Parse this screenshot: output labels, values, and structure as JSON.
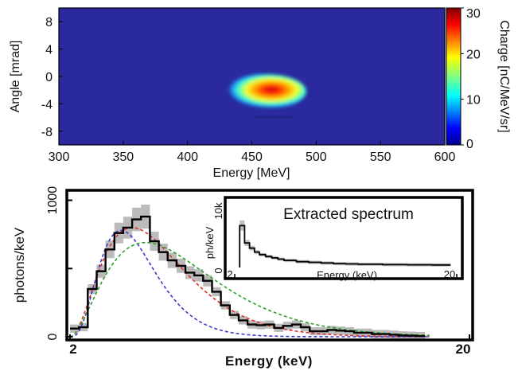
{
  "colors": {
    "heatmap_background": "#2a2a9e",
    "blob_core": "#d6001c",
    "data_black": "#000000",
    "data_grey": "#b4b4b4",
    "fit_red": "#e0302a",
    "fit_blue": "#3a3ad0",
    "fit_green": "#2ca02c"
  },
  "chart_data": [
    {
      "type": "heatmap",
      "xlabel": "Energy [MeV]",
      "ylabel": "Angle [mrad]",
      "xlim": [
        300,
        600
      ],
      "ylim": [
        -10,
        10
      ],
      "xticks": [
        "300",
        "350",
        "400",
        "450",
        "500",
        "550",
        "600"
      ],
      "yticks": [
        "8",
        "4",
        "0",
        "-4",
        "-8"
      ],
      "colorbar": {
        "label": "Charge [nC/MeV/sr]",
        "range": [
          0,
          30
        ],
        "ticks": [
          "30",
          "20",
          "10",
          "0"
        ],
        "colormap": "jet"
      },
      "peak": {
        "energy": 463,
        "angle": -2.2,
        "charge": 30
      },
      "fwhm_energy_MeV": 40,
      "fwhm_angle_mrad": 3.5
    },
    {
      "type": "line",
      "xlabel": "Energy (keV)",
      "ylabel": "photons/keV",
      "xlim": [
        2,
        20
      ],
      "ylim": [
        0,
        1050
      ],
      "xticks": [
        "2",
        "20"
      ],
      "yticks": [
        "0",
        "500",
        "1000"
      ],
      "series": [
        {
          "style": "step",
          "color": "#000000",
          "x": [
            2.0,
            2.4,
            2.8,
            3.2,
            3.6,
            4.0,
            4.4,
            4.8,
            5.2,
            5.6,
            6.0,
            6.4,
            6.8,
            7.2,
            7.6,
            8.0,
            8.4,
            8.8,
            9.2,
            9.6,
            10.0,
            10.4,
            10.8,
            11.2,
            11.6,
            12.0,
            12.4,
            12.8,
            13.2,
            13.6,
            14.0,
            14.4,
            14.8,
            15.2,
            15.6,
            16.0,
            16.4,
            16.8,
            17.2,
            17.6,
            18.0
          ],
          "y": [
            60,
            70,
            350,
            480,
            640,
            760,
            800,
            860,
            880,
            700,
            620,
            560,
            520,
            470,
            450,
            410,
            330,
            230,
            160,
            120,
            90,
            85,
            90,
            65,
            80,
            90,
            70,
            40,
            40,
            50,
            45,
            40,
            30,
            30,
            20,
            20,
            15,
            10,
            8,
            5,
            0
          ]
        },
        {
          "style": "dashed",
          "color": "#e0302a",
          "model": "fit",
          "peak_x": 4.8,
          "peak_y": 800
        },
        {
          "style": "dashed",
          "color": "#3a3ad0",
          "model": "fit",
          "peak_x": 4.3,
          "peak_y": 780
        },
        {
          "style": "dashed",
          "color": "#2ca02c",
          "model": "fit",
          "peak_x": 5.4,
          "peak_y": 690
        }
      ]
    },
    {
      "type": "line",
      "title": "Extracted spectrum",
      "xlabel": "Energy (keV)",
      "ylabel": "ph/keV",
      "xlim": [
        2,
        20
      ],
      "ylim": [
        0,
        10000
      ],
      "xticks": [
        "2",
        "20"
      ],
      "yticks": [
        "0",
        "10k"
      ],
      "series": [
        {
          "style": "step",
          "color": "#000000",
          "x": [
            2.4,
            2.8,
            3.2,
            3.6,
            4.0,
            4.5,
            5.0,
            5.5,
            6.0,
            7.0,
            8.0,
            9.0,
            10.0,
            11.0,
            12.0,
            14.0,
            16.0,
            18.0,
            19.5
          ],
          "y": [
            6500,
            3800,
            3000,
            2400,
            2000,
            1700,
            1500,
            1300,
            1100,
            900,
            800,
            700,
            600,
            550,
            500,
            450,
            420,
            400,
            380
          ]
        }
      ]
    }
  ]
}
